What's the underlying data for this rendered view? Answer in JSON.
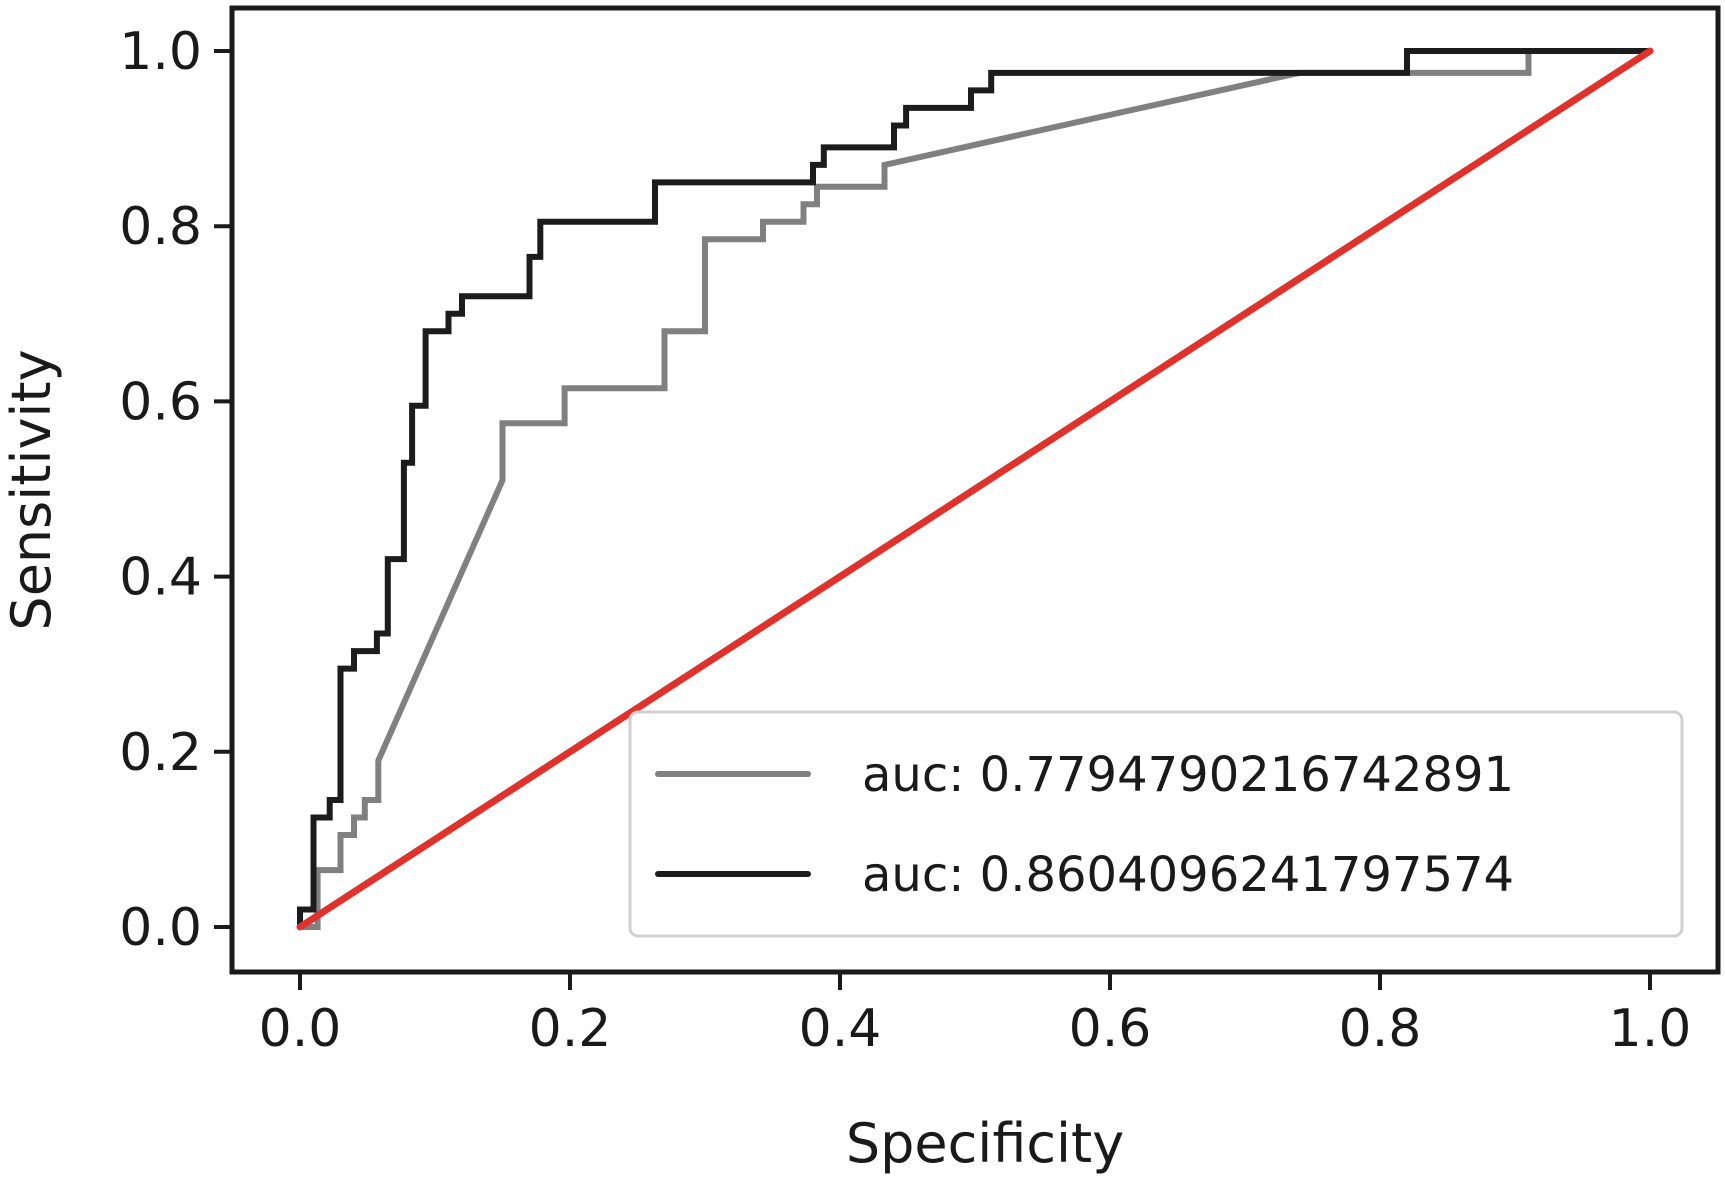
{
  "chart_data": {
    "type": "line",
    "title": "",
    "xlabel": "Specificity",
    "ylabel": "Sensitivity",
    "xlim": [
      0.0,
      1.0
    ],
    "ylim": [
      0.0,
      1.0
    ],
    "xticks": [
      "0.0",
      "0.2",
      "0.4",
      "0.6",
      "0.8",
      "1.0"
    ],
    "yticks": [
      "0.0",
      "0.2",
      "0.4",
      "0.6",
      "0.8",
      "1.0"
    ],
    "grid": false,
    "legend_position": "lower-right",
    "series": [
      {
        "name": "auc: 0.7794790216742891",
        "color": "#808080",
        "style": "solid",
        "x": [
          0.0,
          0.013,
          0.013,
          0.03,
          0.03,
          0.04,
          0.04,
          0.048,
          0.048,
          0.058,
          0.058,
          0.15,
          0.15,
          0.196,
          0.196,
          0.27,
          0.27,
          0.3,
          0.3,
          0.343,
          0.343,
          0.373,
          0.373,
          0.383,
          0.383,
          0.433,
          0.433,
          0.74,
          0.91,
          0.91,
          1.0
        ],
        "y": [
          0.0,
          0.0,
          0.065,
          0.065,
          0.105,
          0.105,
          0.125,
          0.125,
          0.145,
          0.145,
          0.19,
          0.51,
          0.575,
          0.575,
          0.615,
          0.615,
          0.68,
          0.68,
          0.785,
          0.785,
          0.805,
          0.805,
          0.825,
          0.825,
          0.845,
          0.845,
          0.87,
          0.975,
          0.975,
          1.0,
          1.0
        ]
      },
      {
        "name": "auc: 0.8604096241797574",
        "color": "#1c1c1c",
        "style": "solid",
        "x": [
          0.0,
          0.0,
          0.01,
          0.01,
          0.022,
          0.022,
          0.03,
          0.03,
          0.04,
          0.04,
          0.057,
          0.057,
          0.065,
          0.065,
          0.077,
          0.077,
          0.083,
          0.083,
          0.093,
          0.093,
          0.11,
          0.11,
          0.12,
          0.12,
          0.17,
          0.17,
          0.178,
          0.178,
          0.263,
          0.263,
          0.38,
          0.38,
          0.388,
          0.388,
          0.44,
          0.44,
          0.449,
          0.449,
          0.497,
          0.497,
          0.512,
          0.512,
          0.82,
          0.82,
          1.0
        ],
        "y": [
          0.0,
          0.02,
          0.02,
          0.125,
          0.125,
          0.145,
          0.145,
          0.295,
          0.295,
          0.315,
          0.315,
          0.335,
          0.335,
          0.42,
          0.42,
          0.53,
          0.53,
          0.595,
          0.595,
          0.68,
          0.68,
          0.7,
          0.7,
          0.72,
          0.72,
          0.765,
          0.765,
          0.805,
          0.805,
          0.85,
          0.85,
          0.87,
          0.87,
          0.89,
          0.89,
          0.915,
          0.915,
          0.935,
          0.935,
          0.955,
          0.955,
          0.975,
          0.975,
          1.0,
          1.0
        ]
      },
      {
        "name": "",
        "color": "#e0312b",
        "style": "solid",
        "x": [
          0.0,
          1.0
        ],
        "y": [
          0.0,
          1.0
        ]
      }
    ],
    "legend": [
      {
        "label": "auc: 0.7794790216742891",
        "color": "#808080"
      },
      {
        "label": "auc: 0.8604096241797574",
        "color": "#1c1c1c"
      }
    ]
  }
}
